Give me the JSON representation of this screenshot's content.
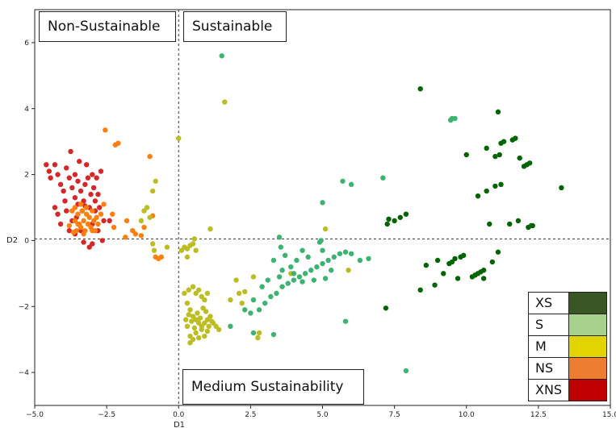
{
  "chart_data": {
    "type": "scatter",
    "xlabel": "D1",
    "ylabel": "D2",
    "xlim": [
      -5.0,
      15.0
    ],
    "ylim": [
      -5.0,
      7.0
    ],
    "xticks": [
      "−5.0",
      "−2.5",
      "0.0",
      "2.5",
      "5.0",
      "7.5",
      "10.0",
      "12.5",
      "15.0"
    ],
    "xtick_values": [
      -5.0,
      -2.5,
      0.0,
      2.5,
      5.0,
      7.5,
      10.0,
      12.5,
      15.0
    ],
    "yticks": [
      "−4",
      "−2",
      "0",
      "2",
      "4",
      "6"
    ],
    "ytick_values": [
      -4,
      -2,
      0,
      2,
      4,
      6
    ],
    "reference_lines": {
      "x": 0.0,
      "y": 0.05,
      "style": "dashed"
    },
    "region_labels": {
      "top_left": "Non-Sustainable",
      "top_right": "Sustainable",
      "bottom": "Medium Sustainability"
    },
    "legend": {
      "placement": "bottom-right",
      "entries": [
        {
          "label": "XS",
          "color": "#375623"
        },
        {
          "label": "S",
          "color": "#a9d18e"
        },
        {
          "label": "M",
          "color": "#e2d400"
        },
        {
          "label": "NS",
          "color": "#ed7d31"
        },
        {
          "label": "XNS",
          "color": "#c00000"
        }
      ]
    },
    "series": [
      {
        "color": "#d62728",
        "points": [
          [
            -4.6,
            2.3
          ],
          [
            -4.5,
            2.1
          ],
          [
            -4.3,
            2.3
          ],
          [
            -4.2,
            2.0
          ],
          [
            -4.1,
            1.7
          ],
          [
            -4.0,
            1.5
          ],
          [
            -3.9,
            2.2
          ],
          [
            -3.8,
            1.9
          ],
          [
            -3.75,
            2.7
          ],
          [
            -3.7,
            1.6
          ],
          [
            -3.6,
            1.3
          ],
          [
            -3.6,
            2.0
          ],
          [
            -3.5,
            1.8
          ],
          [
            -3.5,
            1.1
          ],
          [
            -3.45,
            2.4
          ],
          [
            -3.4,
            1.5
          ],
          [
            -3.35,
            0.9
          ],
          [
            -3.3,
            1.2
          ],
          [
            -3.25,
            1.7
          ],
          [
            -3.2,
            2.3
          ],
          [
            -3.15,
            1.9
          ],
          [
            -3.1,
            1.0
          ],
          [
            -3.05,
            1.4
          ],
          [
            -3.0,
            2.0
          ],
          [
            -2.95,
            1.6
          ],
          [
            -2.9,
            1.2
          ],
          [
            -2.85,
            1.9
          ],
          [
            -2.8,
            1.4
          ],
          [
            -2.75,
            1.0
          ],
          [
            -2.7,
            2.1
          ],
          [
            -3.9,
            0.9
          ],
          [
            -4.1,
            0.5
          ],
          [
            -3.8,
            0.3
          ],
          [
            -3.6,
            0.2
          ],
          [
            -3.3,
            -0.05
          ],
          [
            -3.0,
            -0.1
          ],
          [
            -2.8,
            0.3
          ],
          [
            -2.65,
            0.0
          ],
          [
            -3.95,
            1.2
          ],
          [
            -4.3,
            1.0
          ],
          [
            -4.2,
            0.8
          ],
          [
            -3.7,
            0.6
          ],
          [
            -3.0,
            0.5
          ],
          [
            -2.6,
            0.6
          ],
          [
            -3.4,
            0.3
          ],
          [
            -3.1,
            -0.2
          ],
          [
            -2.9,
            0.9
          ],
          [
            -3.55,
            0.7
          ],
          [
            -3.25,
            1.05
          ],
          [
            -4.45,
            1.9
          ],
          [
            -2.4,
            0.6
          ]
        ]
      },
      {
        "color": "#ff7f0e",
        "points": [
          [
            -3.7,
            0.9
          ],
          [
            -3.6,
            0.6
          ],
          [
            -3.55,
            0.3
          ],
          [
            -3.5,
            0.8
          ],
          [
            -3.45,
            0.5
          ],
          [
            -3.4,
            0.4
          ],
          [
            -3.35,
            0.9
          ],
          [
            -3.3,
            0.6
          ],
          [
            -3.25,
            0.3
          ],
          [
            -3.2,
            0.8
          ],
          [
            -3.15,
            0.5
          ],
          [
            -3.1,
            0.7
          ],
          [
            -3.05,
            0.4
          ],
          [
            -3.0,
            0.9
          ],
          [
            -2.95,
            0.6
          ],
          [
            -2.9,
            0.3
          ],
          [
            -2.85,
            0.7
          ],
          [
            -2.8,
            0.5
          ],
          [
            -3.6,
            1.0
          ],
          [
            -3.4,
            1.1
          ],
          [
            -3.2,
            1.0
          ],
          [
            -3.0,
            0.3
          ],
          [
            -3.5,
            0.5
          ],
          [
            -3.3,
            0.2
          ],
          [
            -2.7,
            0.8
          ],
          [
            -2.6,
            1.1
          ],
          [
            -2.3,
            0.8
          ],
          [
            -2.2,
            2.9
          ],
          [
            -2.1,
            2.95
          ],
          [
            -2.25,
            0.4
          ],
          [
            -1.8,
            0.6
          ],
          [
            -1.6,
            0.3
          ],
          [
            -1.5,
            0.2
          ],
          [
            -1.3,
            0.15
          ],
          [
            -1.2,
            0.4
          ],
          [
            -1.0,
            2.55
          ],
          [
            -0.9,
            0.75
          ],
          [
            -0.8,
            -0.5
          ],
          [
            -0.7,
            -0.55
          ],
          [
            -0.6,
            -0.5
          ],
          [
            -2.55,
            3.35
          ],
          [
            -1.85,
            0.1
          ],
          [
            -3.8,
            0.45
          ],
          [
            -3.65,
            0.25
          ]
        ]
      },
      {
        "color": "#bcbd22",
        "points": [
          [
            -1.2,
            0.9
          ],
          [
            -1.1,
            1.0
          ],
          [
            -1.0,
            0.7
          ],
          [
            -0.9,
            1.5
          ],
          [
            -0.8,
            1.8
          ],
          [
            -0.85,
            -0.3
          ],
          [
            -0.9,
            -0.1
          ],
          [
            -1.3,
            0.6
          ],
          [
            -0.4,
            -0.2
          ],
          [
            0.0,
            3.1
          ],
          [
            0.1,
            -0.3
          ],
          [
            0.2,
            -0.2
          ],
          [
            0.3,
            -0.25
          ],
          [
            0.4,
            -0.15
          ],
          [
            0.5,
            -0.1
          ],
          [
            0.55,
            0.05
          ],
          [
            0.6,
            -0.3
          ],
          [
            0.3,
            -0.5
          ],
          [
            1.1,
            0.35
          ],
          [
            1.6,
            4.2
          ],
          [
            0.2,
            -1.6
          ],
          [
            0.3,
            -1.9
          ],
          [
            0.4,
            -2.1
          ],
          [
            0.5,
            -2.3
          ],
          [
            0.6,
            -2.4
          ],
          [
            0.7,
            -2.5
          ],
          [
            0.8,
            -2.6
          ],
          [
            0.9,
            -2.5
          ],
          [
            1.0,
            -2.4
          ],
          [
            1.1,
            -2.3
          ],
          [
            1.2,
            -2.5
          ],
          [
            1.3,
            -2.6
          ],
          [
            0.3,
            -2.6
          ],
          [
            0.4,
            -2.9
          ],
          [
            0.5,
            -3.0
          ],
          [
            0.6,
            -2.8
          ],
          [
            0.7,
            -2.95
          ],
          [
            0.8,
            -2.7
          ],
          [
            0.9,
            -2.9
          ],
          [
            1.0,
            -2.75
          ],
          [
            0.4,
            -3.1
          ],
          [
            0.35,
            -1.5
          ],
          [
            0.5,
            -1.4
          ],
          [
            0.6,
            -1.6
          ],
          [
            0.7,
            -1.5
          ],
          [
            0.8,
            -1.7
          ],
          [
            0.9,
            -1.8
          ],
          [
            1.0,
            -1.6
          ],
          [
            0.45,
            -2.45
          ],
          [
            0.55,
            -2.65
          ],
          [
            0.65,
            -2.2
          ],
          [
            0.75,
            -2.35
          ],
          [
            0.85,
            -2.05
          ],
          [
            0.95,
            -2.15
          ],
          [
            1.05,
            -2.6
          ],
          [
            1.15,
            -2.45
          ],
          [
            0.25,
            -2.4
          ],
          [
            0.35,
            -2.25
          ],
          [
            2.1,
            -1.6
          ],
          [
            2.3,
            -1.55
          ],
          [
            2.0,
            -1.2
          ],
          [
            2.6,
            -1.1
          ],
          [
            2.75,
            -2.95
          ],
          [
            2.8,
            -2.8
          ],
          [
            5.1,
            0.35
          ],
          [
            5.9,
            -0.9
          ],
          [
            3.9,
            -1.0
          ],
          [
            2.2,
            -1.9
          ],
          [
            1.4,
            -2.7
          ],
          [
            1.8,
            -1.8
          ]
        ]
      },
      {
        "color": "#3cb371",
        "points": [
          [
            1.5,
            5.6
          ],
          [
            2.5,
            -2.2
          ],
          [
            2.8,
            -2.1
          ],
          [
            3.0,
            -1.9
          ],
          [
            3.2,
            -1.7
          ],
          [
            3.4,
            -1.6
          ],
          [
            3.6,
            -1.4
          ],
          [
            3.8,
            -1.3
          ],
          [
            4.0,
            -1.2
          ],
          [
            4.2,
            -1.1
          ],
          [
            4.4,
            -1.0
          ],
          [
            4.6,
            -0.9
          ],
          [
            4.8,
            -0.8
          ],
          [
            5.0,
            -0.7
          ],
          [
            5.2,
            -0.6
          ],
          [
            5.4,
            -0.5
          ],
          [
            5.6,
            -0.4
          ],
          [
            5.8,
            -0.35
          ],
          [
            3.5,
            0.1
          ],
          [
            3.55,
            -0.2
          ],
          [
            3.7,
            -0.45
          ],
          [
            3.9,
            -0.8
          ],
          [
            4.1,
            -0.6
          ],
          [
            4.3,
            -0.3
          ],
          [
            4.5,
            -0.5
          ],
          [
            4.9,
            -0.05
          ],
          [
            5.0,
            -0.3
          ],
          [
            4.95,
            0.0
          ],
          [
            5.3,
            -0.9
          ],
          [
            3.3,
            -0.6
          ],
          [
            3.1,
            -1.2
          ],
          [
            2.9,
            -1.4
          ],
          [
            2.6,
            -1.8
          ],
          [
            2.3,
            -2.1
          ],
          [
            1.8,
            -2.6
          ],
          [
            5.0,
            1.15
          ],
          [
            5.7,
            1.8
          ],
          [
            6.0,
            1.7
          ],
          [
            7.1,
            1.9
          ],
          [
            6.0,
            -0.4
          ],
          [
            6.3,
            -0.6
          ],
          [
            6.6,
            -0.55
          ],
          [
            2.6,
            -2.8
          ],
          [
            3.3,
            -2.85
          ],
          [
            3.5,
            -1.1
          ],
          [
            4.3,
            -1.25
          ],
          [
            4.7,
            -1.2
          ],
          [
            5.1,
            -1.15
          ],
          [
            5.8,
            -2.45
          ],
          [
            7.9,
            -3.95
          ],
          [
            9.5,
            3.7
          ],
          [
            9.6,
            3.7
          ],
          [
            9.45,
            3.65
          ],
          [
            4.0,
            -1.0
          ],
          [
            3.6,
            -0.9
          ]
        ]
      },
      {
        "color": "#006400",
        "points": [
          [
            7.2,
            -2.05
          ],
          [
            7.25,
            0.5
          ],
          [
            7.3,
            0.65
          ],
          [
            7.5,
            0.6
          ],
          [
            7.7,
            0.7
          ],
          [
            7.9,
            0.8
          ],
          [
            8.4,
            4.6
          ],
          [
            8.4,
            -1.5
          ],
          [
            8.6,
            -0.75
          ],
          [
            8.9,
            -1.35
          ],
          [
            9.0,
            -0.6
          ],
          [
            9.2,
            -1.0
          ],
          [
            9.4,
            -0.7
          ],
          [
            9.5,
            -0.65
          ],
          [
            9.6,
            -0.55
          ],
          [
            9.8,
            -0.5
          ],
          [
            9.9,
            -0.45
          ],
          [
            10.0,
            2.6
          ],
          [
            10.2,
            -1.1
          ],
          [
            10.3,
            -1.05
          ],
          [
            10.4,
            -1.0
          ],
          [
            10.5,
            -0.95
          ],
          [
            10.6,
            -0.9
          ],
          [
            10.9,
            -0.65
          ],
          [
            11.0,
            2.55
          ],
          [
            11.15,
            2.6
          ],
          [
            11.2,
            2.95
          ],
          [
            11.3,
            3.0
          ],
          [
            11.6,
            3.05
          ],
          [
            11.7,
            3.1
          ],
          [
            11.85,
            2.5
          ],
          [
            12.0,
            2.25
          ],
          [
            12.1,
            2.3
          ],
          [
            12.2,
            2.35
          ],
          [
            10.8,
            0.5
          ],
          [
            11.5,
            0.5
          ],
          [
            11.8,
            0.6
          ],
          [
            12.15,
            0.4
          ],
          [
            12.25,
            0.45
          ],
          [
            12.3,
            0.45
          ],
          [
            10.4,
            1.35
          ],
          [
            10.7,
            1.5
          ],
          [
            11.0,
            1.65
          ],
          [
            11.2,
            1.7
          ],
          [
            13.3,
            1.6
          ],
          [
            11.1,
            3.9
          ],
          [
            10.7,
            2.8
          ],
          [
            9.7,
            -1.15
          ],
          [
            10.6,
            -1.15
          ],
          [
            11.1,
            -0.35
          ]
        ]
      }
    ]
  }
}
